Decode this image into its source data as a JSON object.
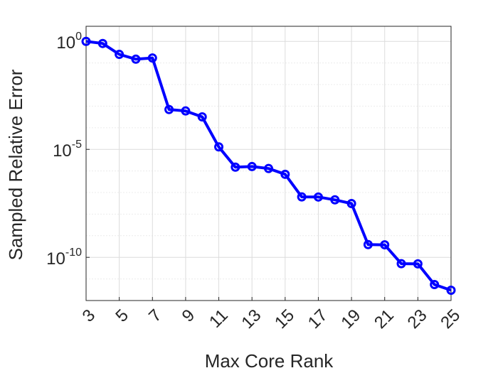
{
  "chart_data": {
    "type": "line",
    "xlabel": "Max Core Rank",
    "ylabel": "Sampled Relative Error",
    "title": "",
    "x": [
      3,
      4,
      5,
      6,
      7,
      8,
      9,
      10,
      11,
      12,
      13,
      14,
      15,
      16,
      17,
      18,
      19,
      20,
      21,
      22,
      23,
      24,
      25
    ],
    "series": [
      {
        "name": "",
        "color": "#0000ff",
        "marker": "circle",
        "values": [
          1.0,
          0.8,
          0.25,
          0.15,
          0.17,
          0.0007,
          0.0006,
          0.00032,
          1.3e-05,
          1.5e-06,
          1.6e-06,
          1.3e-06,
          7e-07,
          6.3e-08,
          6.2e-08,
          4.6e-08,
          3.1e-08,
          3.9e-10,
          3.8e-10,
          5.1e-11,
          5e-11,
          5.5e-12,
          3e-12
        ]
      }
    ],
    "xlim": [
      3,
      25
    ],
    "xticks": [
      "3",
      "5",
      "7",
      "9",
      "11",
      "13",
      "15",
      "17",
      "19",
      "21",
      "23",
      "25"
    ],
    "yscale": "log",
    "ylim": [
      1e-12,
      5
    ],
    "yticks": [
      {
        "base": "10",
        "exp": "0",
        "value": 1
      },
      {
        "base": "10",
        "exp": "-5",
        "value": 1e-05
      },
      {
        "base": "10",
        "exp": "-10",
        "value": 1e-10
      }
    ],
    "grid": true,
    "legend": "none"
  }
}
